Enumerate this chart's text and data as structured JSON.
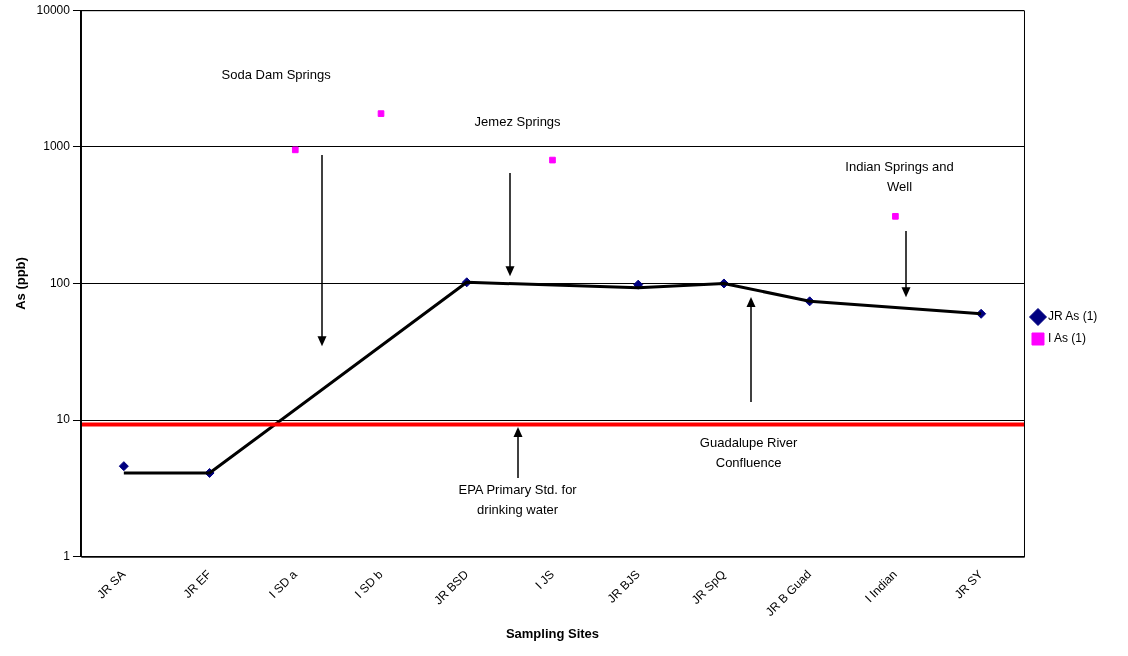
{
  "chart_data": {
    "type": "scatter",
    "xlabel": "Sampling Sites",
    "ylabel": "As (ppb)",
    "categories": [
      "JR SA",
      "JR EF",
      "I SD a",
      "I SD b",
      "JR BSD",
      "I JS",
      "JR BJS",
      "JR SpQ",
      "JR B Guad",
      "I Indian",
      "JR SY"
    ],
    "series": [
      {
        "type": "line",
        "color": "#000000",
        "marker": "none",
        "x": [
          "JR SA",
          "JR EF",
          "JR BSD",
          "JR BJS",
          "JR SpQ",
          "JR B Guad",
          "JR SY"
        ],
        "values": [
          4.1,
          4.1,
          102,
          93,
          100,
          74,
          60
        ]
      },
      {
        "name": "JR As (1)",
        "color": "#000080",
        "marker": "diamond",
        "x": [
          "JR SA",
          "JR EF",
          "JR BSD",
          "JR BJS",
          "JR SpQ",
          "JR B Guad",
          "JR SY"
        ],
        "values": [
          4.6,
          4.1,
          102,
          98,
          100,
          74,
          60
        ]
      },
      {
        "name": "I As (1)",
        "color": "#ff00ff",
        "marker": "square",
        "x": [
          "I SD a",
          "I SD b",
          "I JS",
          "I Indian"
        ],
        "values": [
          950,
          1750,
          800,
          310
        ]
      }
    ],
    "log": true,
    "ylim": [
      1,
      10000
    ],
    "yticks": [
      1,
      10,
      100,
      1000,
      10000
    ],
    "grid": "y",
    "legend": "right",
    "ref_lines": [
      {
        "axis": "y",
        "value": 9.3,
        "label": "EPA Primary Std. for drinking water",
        "color": "#ff0000"
      }
    ],
    "annotations": [
      "Soda Dam Springs",
      "Jemez Springs",
      "Indian Springs and Well",
      "Guadalupe River Confluence"
    ]
  }
}
